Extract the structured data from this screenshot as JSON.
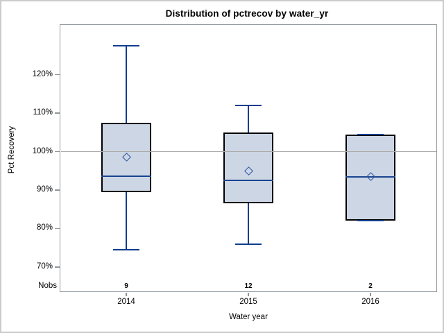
{
  "window": {
    "background": "#ffffff",
    "border_color": "#cbcbcb"
  },
  "chart_data": {
    "type": "boxplot",
    "title": "Distribution of pctrecov by water_yr",
    "xlabel": "Water year",
    "ylabel": "Pct Recovery",
    "categories": [
      "2014",
      "2015",
      "2016"
    ],
    "nobs_label": "Nobs",
    "nobs": [
      "9",
      "12",
      "2"
    ],
    "ytick_values": [
      120,
      110,
      100,
      90,
      80,
      70
    ],
    "ytick_labels": [
      "120%",
      "110%",
      "100%",
      "90%",
      "80%",
      "70%"
    ],
    "ylim": [
      63.5,
      133.1
    ],
    "refline_value": 100,
    "grid": "off",
    "legend": "none",
    "series": [
      {
        "category": "2014",
        "n": 9,
        "whisker_low": 74.5,
        "q1": 89.5,
        "median": 93.7,
        "mean": 98.6,
        "q3": 107.5,
        "whisker_high": 127.5
      },
      {
        "category": "2015",
        "n": 12,
        "whisker_low": 76.0,
        "q1": 86.5,
        "median": 92.5,
        "mean": 95.0,
        "q3": 105.0,
        "whisker_high": 112.0
      },
      {
        "category": "2016",
        "n": 2,
        "whisker_low": 82.0,
        "q1": 82.0,
        "median": 93.5,
        "mean": 93.5,
        "q3": 104.5,
        "whisker_high": 104.5
      }
    ],
    "colors": {
      "box_fill": "#ccd6e4",
      "box_border": "#000000",
      "whisker": "#0f3d8e",
      "median": "#1b4490",
      "mean_marker": "#2b4fa2",
      "refline": "#ababab",
      "frame": "#8f969a",
      "text": "#000000"
    }
  }
}
